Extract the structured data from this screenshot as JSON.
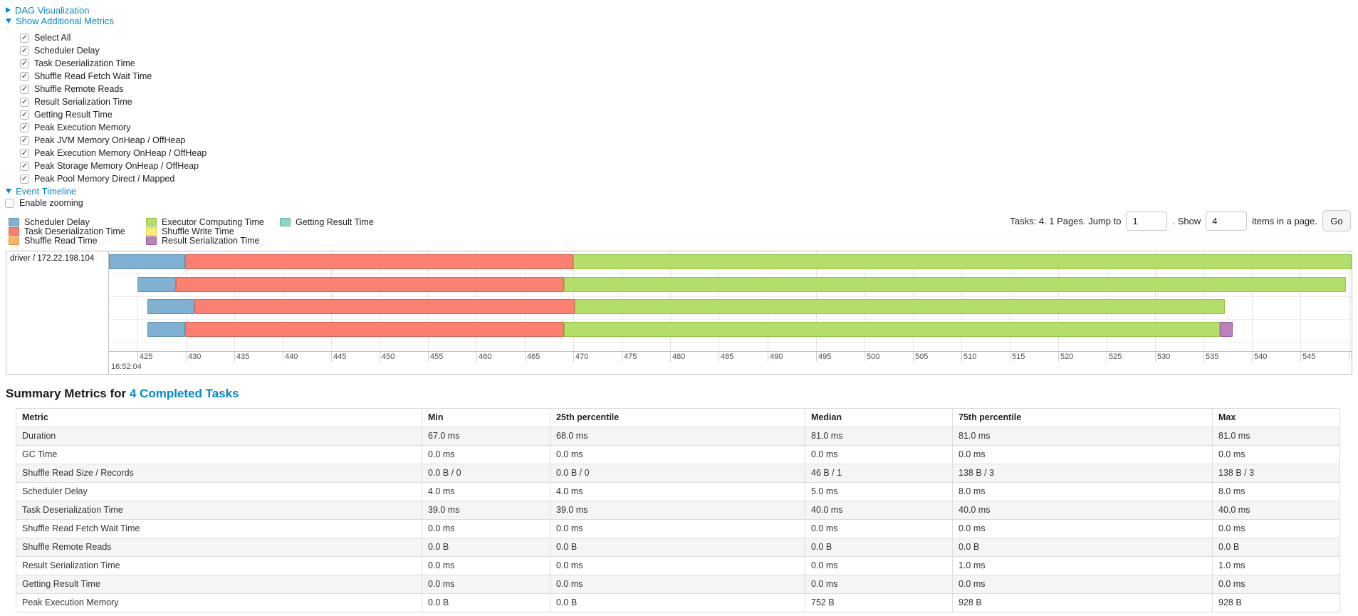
{
  "accent": {
    "link_color": "#0088cc"
  },
  "sections": {
    "dag": {
      "label": "DAG Visualization",
      "state": "collapsed"
    },
    "metrics": {
      "label": "Show Additional Metrics",
      "state": "expanded"
    },
    "timeline": {
      "label": "Event Timeline",
      "state": "expanded"
    }
  },
  "metric_checkboxes": [
    {
      "label": "Select All",
      "checked": true
    },
    {
      "label": "Scheduler Delay",
      "checked": true
    },
    {
      "label": "Task Deserialization Time",
      "checked": true
    },
    {
      "label": "Shuffle Read Fetch Wait Time",
      "checked": true
    },
    {
      "label": "Shuffle Remote Reads",
      "checked": true
    },
    {
      "label": "Result Serialization Time",
      "checked": true
    },
    {
      "label": "Getting Result Time",
      "checked": true
    },
    {
      "label": "Peak Execution Memory",
      "checked": true
    },
    {
      "label": "Peak JVM Memory OnHeap / OffHeap",
      "checked": true
    },
    {
      "label": "Peak Execution Memory OnHeap / OffHeap",
      "checked": true
    },
    {
      "label": "Peak Storage Memory OnHeap / OffHeap",
      "checked": true
    },
    {
      "label": "Peak Pool Memory Direct / Mapped",
      "checked": true
    }
  ],
  "enable_zooming": {
    "label": "Enable zooming",
    "checked": false
  },
  "legend": {
    "columns": [
      [
        {
          "key": "scheduler_delay",
          "label": "Scheduler Delay",
          "fill": "#80B1D3",
          "border": "#5E93BB"
        },
        {
          "key": "task_deserialization",
          "label": "Task Deserialization Time",
          "fill": "#FB8072",
          "border": "#DD6455"
        },
        {
          "key": "shuffle_read",
          "label": "Shuffle Read Time",
          "fill": "#FDB462",
          "border": "#E29440"
        }
      ],
      [
        {
          "key": "executor_computing",
          "label": "Executor Computing Time",
          "fill": "#B3DE69",
          "border": "#96C443"
        },
        {
          "key": "shuffle_write",
          "label": "Shuffle Write Time",
          "fill": "#FFED6F",
          "border": "#E3CF4B"
        },
        {
          "key": "result_serialization",
          "label": "Result Serialization Time",
          "fill": "#BC80BD",
          "border": "#9C5D9E"
        }
      ],
      [
        {
          "key": "getting_result",
          "label": "Getting Result Time",
          "fill": "#8DD3C7",
          "border": "#69B5A7"
        }
      ]
    ]
  },
  "pagination": {
    "summary_text": "Tasks: 4. 1 Pages. Jump to",
    "jump_value": "1",
    "mid_text": ". Show",
    "show_value": "4",
    "suffix_text": "items in a page.",
    "go_label": "Go"
  },
  "chart_data": {
    "type": "timeline",
    "group_label": "driver / 172.22.198.104",
    "x_axis": {
      "tick_start": 425,
      "tick_end": 550,
      "tick_step": 5,
      "major_label": "16:52:04",
      "unit": "ms"
    },
    "tasks": [
      {
        "segments": [
          {
            "key": "scheduler_delay",
            "start": 421.9,
            "end": 429.9
          },
          {
            "key": "task_deserialization",
            "start": 429.9,
            "end": 470.0
          },
          {
            "key": "executor_computing",
            "start": 470.0,
            "end": 551.5
          }
        ]
      },
      {
        "segments": [
          {
            "key": "scheduler_delay",
            "start": 425.0,
            "end": 429.0
          },
          {
            "key": "task_deserialization",
            "start": 429.0,
            "end": 469.0
          },
          {
            "key": "executor_computing",
            "start": 469.0,
            "end": 549.7
          }
        ]
      },
      {
        "segments": [
          {
            "key": "scheduler_delay",
            "start": 426.0,
            "end": 430.9
          },
          {
            "key": "task_deserialization",
            "start": 430.9,
            "end": 470.1
          },
          {
            "key": "executor_computing",
            "start": 470.1,
            "end": 537.2
          }
        ]
      },
      {
        "segments": [
          {
            "key": "scheduler_delay",
            "start": 426.0,
            "end": 429.9
          },
          {
            "key": "task_deserialization",
            "start": 429.9,
            "end": 469.0
          },
          {
            "key": "executor_computing",
            "start": 469.0,
            "end": 536.7
          },
          {
            "key": "result_serialization",
            "start": 536.7,
            "end": 538.0
          }
        ]
      }
    ]
  },
  "summary_metrics": {
    "title_prefix": "Summary Metrics for",
    "title_link": "4 Completed Tasks",
    "columns": [
      "Metric",
      "Min",
      "25th percentile",
      "Median",
      "75th percentile",
      "Max"
    ],
    "rows": [
      [
        "Duration",
        "67.0 ms",
        "68.0 ms",
        "81.0 ms",
        "81.0 ms",
        "81.0 ms"
      ],
      [
        "GC Time",
        "0.0 ms",
        "0.0 ms",
        "0.0 ms",
        "0.0 ms",
        "0.0 ms"
      ],
      [
        "Shuffle Read Size / Records",
        "0.0 B / 0",
        "0.0 B / 0",
        "46 B / 1",
        "138 B / 3",
        "138 B / 3"
      ],
      [
        "Scheduler Delay",
        "4.0 ms",
        "4.0 ms",
        "5.0 ms",
        "8.0 ms",
        "8.0 ms"
      ],
      [
        "Task Deserialization Time",
        "39.0 ms",
        "39.0 ms",
        "40.0 ms",
        "40.0 ms",
        "40.0 ms"
      ],
      [
        "Shuffle Read Fetch Wait Time",
        "0.0 ms",
        "0.0 ms",
        "0.0 ms",
        "0.0 ms",
        "0.0 ms"
      ],
      [
        "Shuffle Remote Reads",
        "0.0 B",
        "0.0 B",
        "0.0 B",
        "0.0 B",
        "0.0 B"
      ],
      [
        "Result Serialization Time",
        "0.0 ms",
        "0.0 ms",
        "0.0 ms",
        "1.0 ms",
        "1.0 ms"
      ],
      [
        "Getting Result Time",
        "0.0 ms",
        "0.0 ms",
        "0.0 ms",
        "0.0 ms",
        "0.0 ms"
      ],
      [
        "Peak Execution Memory",
        "0.0 B",
        "0.0 B",
        "752 B",
        "928 B",
        "928 B"
      ]
    ]
  }
}
